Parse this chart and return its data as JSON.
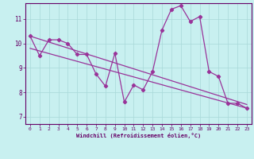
{
  "xlabel": "Windchill (Refroidissement éolien,°C)",
  "bg_color": "#c8f0f0",
  "grid_color": "#a8d8d8",
  "line_color": "#993399",
  "xlim": [
    -0.5,
    23.5
  ],
  "ylim": [
    6.7,
    11.65
  ],
  "xticks": [
    0,
    1,
    2,
    3,
    4,
    5,
    6,
    7,
    8,
    9,
    10,
    11,
    12,
    13,
    14,
    15,
    16,
    17,
    18,
    19,
    20,
    21,
    22,
    23
  ],
  "yticks": [
    7,
    8,
    9,
    10,
    11
  ],
  "x": [
    0,
    1,
    2,
    3,
    4,
    5,
    6,
    7,
    8,
    9,
    10,
    11,
    12,
    13,
    14,
    15,
    16,
    17,
    18,
    19,
    20,
    21,
    22,
    23
  ],
  "y_main": [
    10.3,
    9.5,
    10.15,
    10.15,
    10.0,
    9.55,
    9.55,
    8.75,
    8.25,
    9.6,
    7.6,
    8.3,
    8.1,
    8.85,
    10.55,
    11.4,
    11.55,
    10.9,
    11.1,
    8.85,
    8.65,
    7.55,
    7.55,
    7.35
  ],
  "y_trend1_start": 10.3,
  "y_trend1_end": 7.5,
  "y_trend2_start": 9.8,
  "y_trend2_end": 7.35
}
